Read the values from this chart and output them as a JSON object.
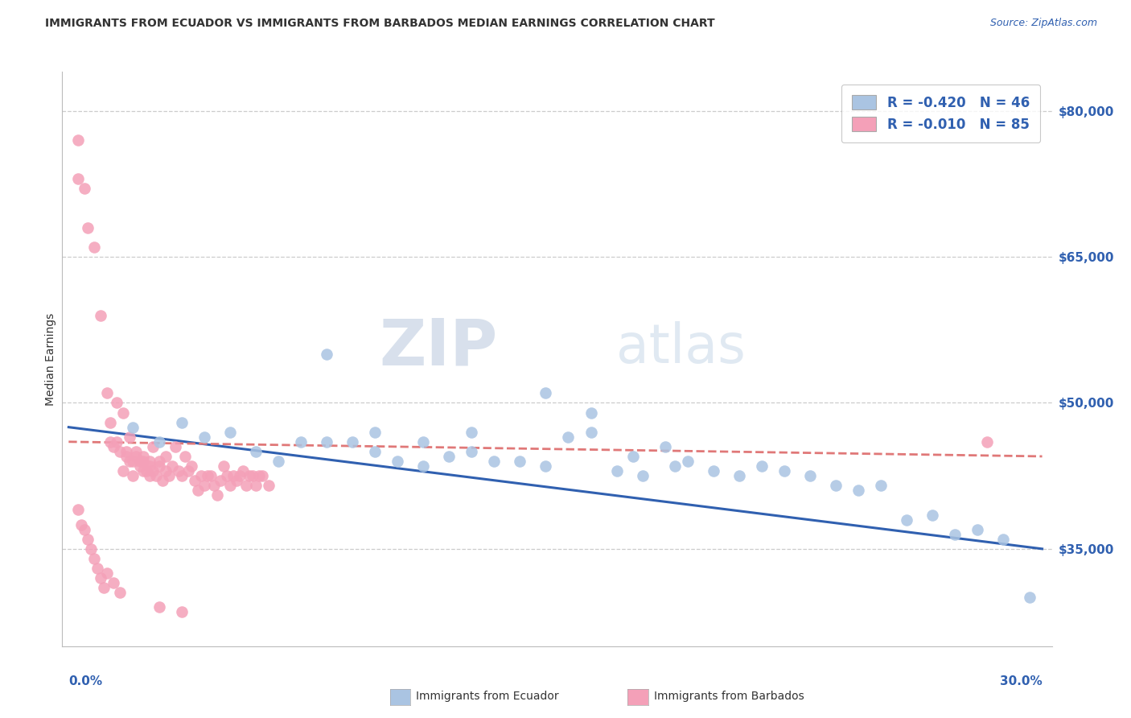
{
  "title": "IMMIGRANTS FROM ECUADOR VS IMMIGRANTS FROM BARBADOS MEDIAN EARNINGS CORRELATION CHART",
  "source": "Source: ZipAtlas.com",
  "ylabel": "Median Earnings",
  "y_ticks": [
    35000,
    50000,
    65000,
    80000
  ],
  "y_tick_labels": [
    "$35,000",
    "$50,000",
    "$65,000",
    "$80,000"
  ],
  "ylim": [
    25000,
    84000
  ],
  "xlim": [
    -0.002,
    0.305
  ],
  "ecuador_color": "#aac4e2",
  "barbados_color": "#f4a0b8",
  "ecuador_line_color": "#3060b0",
  "barbados_line_color": "#e07878",
  "watermark_zip": "ZIP",
  "watermark_atlas": "atlas",
  "ecuador_scatter_x": [
    0.02,
    0.028,
    0.035,
    0.042,
    0.05,
    0.058,
    0.065,
    0.072,
    0.08,
    0.088,
    0.095,
    0.102,
    0.11,
    0.118,
    0.125,
    0.132,
    0.14,
    0.148,
    0.155,
    0.162,
    0.17,
    0.178,
    0.185,
    0.192,
    0.2,
    0.208,
    0.215,
    0.222,
    0.23,
    0.238,
    0.245,
    0.252,
    0.26,
    0.268,
    0.275,
    0.282,
    0.29,
    0.298,
    0.148,
    0.162,
    0.175,
    0.188,
    0.08,
    0.095,
    0.11,
    0.125
  ],
  "ecuador_scatter_y": [
    47500,
    46000,
    48000,
    46500,
    47000,
    45000,
    44000,
    46000,
    55000,
    46000,
    45000,
    44000,
    46000,
    44500,
    45000,
    44000,
    44000,
    43500,
    46500,
    47000,
    43000,
    42500,
    45500,
    44000,
    43000,
    42500,
    43500,
    43000,
    42500,
    41500,
    41000,
    41500,
    38000,
    38500,
    36500,
    37000,
    36000,
    30000,
    51000,
    49000,
    44500,
    43500,
    46000,
    47000,
    43500,
    47000
  ],
  "barbados_scatter_x": [
    0.003,
    0.005,
    0.006,
    0.008,
    0.01,
    0.012,
    0.013,
    0.014,
    0.015,
    0.016,
    0.017,
    0.018,
    0.018,
    0.019,
    0.02,
    0.02,
    0.021,
    0.022,
    0.022,
    0.023,
    0.023,
    0.024,
    0.025,
    0.025,
    0.026,
    0.026,
    0.027,
    0.028,
    0.028,
    0.029,
    0.03,
    0.03,
    0.031,
    0.032,
    0.033,
    0.034,
    0.035,
    0.036,
    0.037,
    0.038,
    0.039,
    0.04,
    0.041,
    0.042,
    0.043,
    0.044,
    0.045,
    0.046,
    0.047,
    0.048,
    0.049,
    0.05,
    0.051,
    0.052,
    0.053,
    0.054,
    0.055,
    0.056,
    0.057,
    0.058,
    0.059,
    0.06,
    0.062,
    0.013,
    0.015,
    0.017,
    0.019,
    0.021,
    0.023,
    0.025,
    0.003,
    0.004,
    0.005,
    0.006,
    0.007,
    0.008,
    0.009,
    0.01,
    0.011,
    0.012,
    0.014,
    0.016,
    0.028,
    0.035,
    0.285,
    0.003
  ],
  "barbados_scatter_y": [
    77000,
    72000,
    68000,
    66000,
    59000,
    51000,
    46000,
    45500,
    46000,
    45000,
    43000,
    44500,
    45000,
    44000,
    42500,
    44000,
    44500,
    43500,
    44000,
    43000,
    44500,
    43000,
    42500,
    44000,
    45500,
    43000,
    42500,
    44000,
    43500,
    42000,
    44500,
    43000,
    42500,
    43500,
    45500,
    43000,
    42500,
    44500,
    43000,
    43500,
    42000,
    41000,
    42500,
    41500,
    42500,
    42500,
    41500,
    40500,
    42000,
    43500,
    42500,
    41500,
    42500,
    42000,
    42500,
    43000,
    41500,
    42500,
    42500,
    41500,
    42500,
    42500,
    41500,
    48000,
    50000,
    49000,
    46500,
    45000,
    44000,
    43500,
    39000,
    37500,
    37000,
    36000,
    35000,
    34000,
    33000,
    32000,
    31000,
    32500,
    31500,
    30500,
    29000,
    28500,
    46000,
    73000
  ],
  "ecuador_trend_x": [
    0.0,
    0.302
  ],
  "ecuador_trend_y": [
    47500,
    35000
  ],
  "barbados_trend_x": [
    0.0,
    0.302
  ],
  "barbados_trend_y": [
    46000,
    44500
  ]
}
